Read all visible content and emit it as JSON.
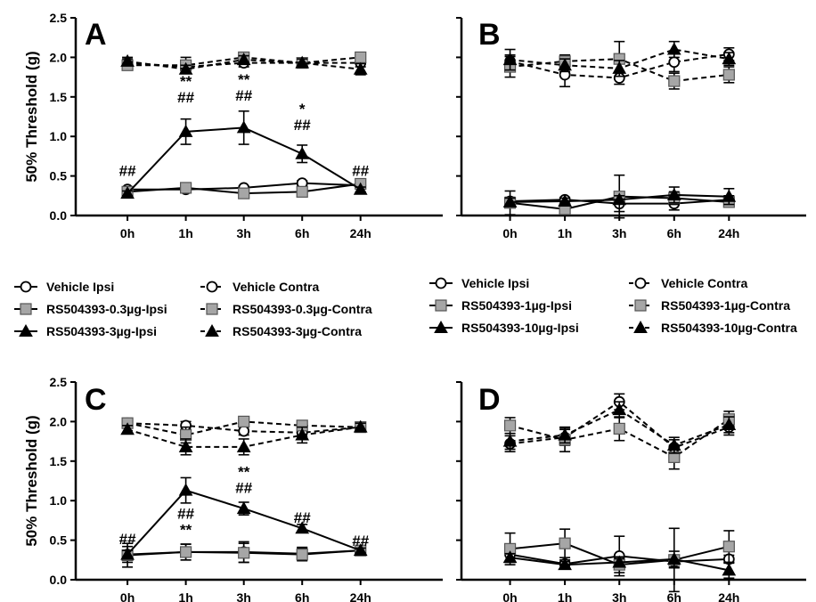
{
  "chart_data": [
    {
      "type": "line",
      "panel": "A",
      "ylabel": "50% Threshold (g)",
      "xlabel": "",
      "categories": [
        "0h",
        "1h",
        "3h",
        "6h",
        "24h"
      ],
      "ylim": [
        0,
        2.5
      ],
      "yticks": [
        "0.0",
        "0.5",
        "1.0",
        "1.5",
        "2.0",
        "2.5"
      ],
      "series": [
        {
          "name": "Vehicle Ipsi",
          "side": "ipsi",
          "marker": "circle-open",
          "values": [
            0.33,
            0.33,
            0.35,
            0.41,
            0.38
          ],
          "errors": [
            0.03,
            0.03,
            0.02,
            0.03,
            0.03
          ]
        },
        {
          "name": "RS504393-0.3µg-Ipsi",
          "side": "ipsi",
          "marker": "square-gray",
          "values": [
            0.3,
            0.35,
            0.28,
            0.3,
            0.4
          ],
          "errors": [
            0.03,
            0.03,
            0.03,
            0.03,
            0.04
          ]
        },
        {
          "name": "RS504393-3µg-Ipsi",
          "side": "ipsi",
          "marker": "triangle-black",
          "values": [
            0.28,
            1.06,
            1.11,
            0.78,
            0.33
          ],
          "errors": [
            0.03,
            0.16,
            0.21,
            0.11,
            0.03
          ]
        },
        {
          "name": "Vehicle Contra",
          "side": "contra",
          "marker": "circle-open",
          "values": [
            1.93,
            1.88,
            1.93,
            1.93,
            1.93
          ],
          "errors": [
            0.05,
            0.05,
            0.05,
            0.04,
            0.05
          ]
        },
        {
          "name": "RS504393-0.3µg-Contra",
          "side": "contra",
          "marker": "square-gray",
          "values": [
            1.9,
            1.9,
            2.0,
            1.93,
            2.0
          ],
          "errors": [
            0.05,
            0.1,
            0.05,
            0.05,
            0.05
          ]
        },
        {
          "name": "RS504393-3µg-Contra",
          "side": "contra",
          "marker": "triangle-black",
          "values": [
            1.95,
            1.85,
            1.97,
            1.93,
            1.85
          ],
          "errors": [
            0.05,
            0.05,
            0.05,
            0.05,
            0.07
          ]
        }
      ],
      "annotations": [
        {
          "category": "0h",
          "value": 0.5,
          "lines": [
            "##"
          ]
        },
        {
          "category": "1h",
          "value": 1.43,
          "lines": [
            "**",
            "##"
          ]
        },
        {
          "category": "3h",
          "value": 1.45,
          "lines": [
            "**",
            "##"
          ]
        },
        {
          "category": "6h",
          "value": 1.08,
          "lines": [
            "*",
            "##"
          ]
        },
        {
          "category": "24h",
          "value": 0.5,
          "lines": [
            "##"
          ]
        }
      ]
    },
    {
      "type": "line",
      "panel": "B",
      "ylabel": "",
      "xlabel": "",
      "categories": [
        "0h",
        "1h",
        "3h",
        "6h",
        "24h"
      ],
      "ylim": [
        0,
        2.5
      ],
      "yticks": [],
      "series": [
        {
          "name": "Vehicle Ipsi",
          "side": "ipsi",
          "marker": "circle-open",
          "values": [
            0.18,
            0.2,
            0.15,
            0.15,
            0.2
          ],
          "errors": [
            0.05,
            0.03,
            0.1,
            0.08,
            0.05
          ]
        },
        {
          "name": "RS504393-1µg-Ipsi",
          "side": "ipsi",
          "marker": "square-gray",
          "values": [
            0.16,
            0.08,
            0.24,
            0.22,
            0.17
          ],
          "errors": [
            0.15,
            0.05,
            0.27,
            0.08,
            0.05
          ]
        },
        {
          "name": "RS504393-10µg-Ipsi",
          "side": "ipsi",
          "marker": "triangle-black",
          "values": [
            0.17,
            0.18,
            0.2,
            0.26,
            0.24
          ],
          "errors": [
            0.05,
            0.04,
            0.05,
            0.1,
            0.1
          ]
        },
        {
          "name": "Vehicle Contra",
          "side": "contra",
          "marker": "circle-open",
          "values": [
            1.95,
            1.78,
            1.74,
            1.94,
            2.04
          ],
          "errors": [
            0.08,
            0.15,
            0.08,
            0.12,
            0.08
          ]
        },
        {
          "name": "RS504393-1µg-Contra",
          "side": "contra",
          "marker": "square-gray",
          "values": [
            1.88,
            1.95,
            1.98,
            1.7,
            1.78
          ],
          "errors": [
            0.13,
            0.08,
            0.22,
            0.1,
            0.1
          ]
        },
        {
          "name": "RS504393-10µg-Contra",
          "side": "contra",
          "marker": "triangle-black",
          "values": [
            1.97,
            1.9,
            1.86,
            2.1,
            1.98
          ],
          "errors": [
            0.13,
            0.08,
            0.1,
            0.1,
            0.08
          ]
        }
      ],
      "annotations": []
    },
    {
      "type": "line",
      "panel": "C",
      "ylabel": "50% Threshold (g)",
      "xlabel": "",
      "categories": [
        "0h",
        "1h",
        "3h",
        "6h",
        "24h"
      ],
      "ylim": [
        0,
        2.5
      ],
      "yticks": [
        "0.0",
        "0.5",
        "1.0",
        "1.5",
        "2.0",
        "2.5"
      ],
      "series": [
        {
          "name": "Vehicle Ipsi",
          "side": "ipsi",
          "marker": "circle-open",
          "values": [
            0.32,
            0.35,
            0.35,
            0.33,
            0.37
          ],
          "errors": [
            0.1,
            0.1,
            0.13,
            0.08,
            0.05
          ]
        },
        {
          "name": "RS504393-0.3µg-Ipsi",
          "side": "ipsi",
          "marker": "square-gray",
          "values": [
            0.31,
            0.35,
            0.34,
            0.32,
            0.37
          ],
          "errors": [
            0.15,
            0.1,
            0.12,
            0.08,
            0.05
          ]
        },
        {
          "name": "RS504393-3µg-Ipsi",
          "side": "ipsi",
          "marker": "triangle-black",
          "values": [
            0.32,
            1.13,
            0.9,
            0.65,
            0.37
          ],
          "errors": [
            0.05,
            0.16,
            0.08,
            0.05,
            0.03
          ]
        },
        {
          "name": "Vehicle Contra",
          "side": "contra",
          "marker": "circle-open",
          "values": [
            1.98,
            1.95,
            1.88,
            1.86,
            1.93
          ],
          "errors": [
            0.05,
            0.05,
            0.05,
            0.05,
            0.05
          ]
        },
        {
          "name": "RS504393-0.3µg-Contra",
          "side": "contra",
          "marker": "square-gray",
          "values": [
            1.98,
            1.83,
            2.0,
            1.95,
            1.93
          ],
          "errors": [
            0.05,
            0.1,
            0.05,
            0.05,
            0.05
          ]
        },
        {
          "name": "RS504393-3µg-Contra",
          "side": "contra",
          "marker": "triangle-black",
          "values": [
            1.9,
            1.68,
            1.68,
            1.83,
            1.93
          ],
          "errors": [
            0.05,
            0.1,
            0.1,
            0.1,
            0.05
          ]
        }
      ],
      "annotations": [
        {
          "category": "0h",
          "value": 0.45,
          "lines": [
            "##"
          ]
        },
        {
          "category": "1h",
          "value": 0.57,
          "lines": [
            "##",
            "**"
          ]
        },
        {
          "category": "3h",
          "value": 1.1,
          "lines": [
            "**",
            "##"
          ]
        },
        {
          "category": "6h",
          "value": 0.72,
          "lines": [
            "##"
          ]
        },
        {
          "category": "24h",
          "value": 0.43,
          "lines": [
            "##"
          ]
        }
      ]
    },
    {
      "type": "line",
      "panel": "D",
      "ylabel": "",
      "xlabel": "",
      "categories": [
        "0h",
        "1h",
        "3h",
        "6h",
        "24h"
      ],
      "ylim": [
        0,
        2.5
      ],
      "yticks": [],
      "series": [
        {
          "name": "Vehicle Ipsi",
          "side": "ipsi",
          "marker": "circle-open",
          "values": [
            0.32,
            0.2,
            0.3,
            0.23,
            0.26
          ],
          "errors": [
            0.1,
            0.05,
            0.25,
            0.08,
            0.05
          ]
        },
        {
          "name": "RS504393-1µg-Ipsi",
          "side": "ipsi",
          "marker": "square-gray",
          "values": [
            0.39,
            0.46,
            0.19,
            0.25,
            0.42
          ],
          "errors": [
            0.2,
            0.18,
            0.1,
            0.4,
            0.2
          ]
        },
        {
          "name": "RS504393-10µg-Ipsi",
          "side": "ipsi",
          "marker": "triangle-black",
          "values": [
            0.28,
            0.19,
            0.22,
            0.26,
            0.12
          ],
          "errors": [
            0.05,
            0.04,
            0.05,
            0.1,
            0.1
          ]
        },
        {
          "name": "Vehicle Contra",
          "side": "contra",
          "marker": "circle-open",
          "values": [
            1.72,
            1.8,
            2.25,
            1.67,
            1.93
          ],
          "errors": [
            0.1,
            0.1,
            0.1,
            0.1,
            0.1
          ]
        },
        {
          "name": "RS504393-1µg-Contra",
          "side": "contra",
          "marker": "square-gray",
          "values": [
            1.95,
            1.77,
            1.91,
            1.55,
            2.03
          ],
          "errors": [
            0.1,
            0.15,
            0.15,
            0.15,
            0.1
          ]
        },
        {
          "name": "RS504393-10µg-Contra",
          "side": "contra",
          "marker": "triangle-black",
          "values": [
            1.75,
            1.83,
            2.15,
            1.7,
            1.96
          ],
          "errors": [
            0.1,
            0.1,
            0.1,
            0.1,
            0.1
          ]
        }
      ],
      "annotations": []
    }
  ],
  "legends": [
    {
      "items": [
        {
          "label": "Vehicle  Ipsi",
          "marker": "circle-open",
          "side": "ipsi"
        },
        {
          "label": "Vehicle  Contra",
          "marker": "circle-open",
          "side": "contra"
        },
        {
          "label": "RS504393-0.3µg-Ipsi",
          "marker": "square-gray",
          "side": "ipsi"
        },
        {
          "label": "RS504393-0.3µg-Contra",
          "marker": "square-gray",
          "side": "contra"
        },
        {
          "label": "RS504393-3µg-Ipsi",
          "marker": "triangle-black",
          "side": "ipsi"
        },
        {
          "label": "RS504393-3µg-Contra",
          "marker": "triangle-black",
          "side": "contra"
        }
      ]
    },
    {
      "items": [
        {
          "label": "Vehicle  Ipsi",
          "marker": "circle-open",
          "side": "ipsi"
        },
        {
          "label": "Vehicle  Contra",
          "marker": "circle-open",
          "side": "contra"
        },
        {
          "label": "RS504393-1µg-Ipsi",
          "marker": "square-gray",
          "side": "ipsi"
        },
        {
          "label": "RS504393-1µg-Contra",
          "marker": "square-gray",
          "side": "contra"
        },
        {
          "label": "RS504393-10µg-Ipsi",
          "marker": "triangle-black",
          "side": "ipsi"
        },
        {
          "label": "RS504393-10µg-Contra",
          "marker": "triangle-black",
          "side": "contra"
        }
      ]
    }
  ]
}
